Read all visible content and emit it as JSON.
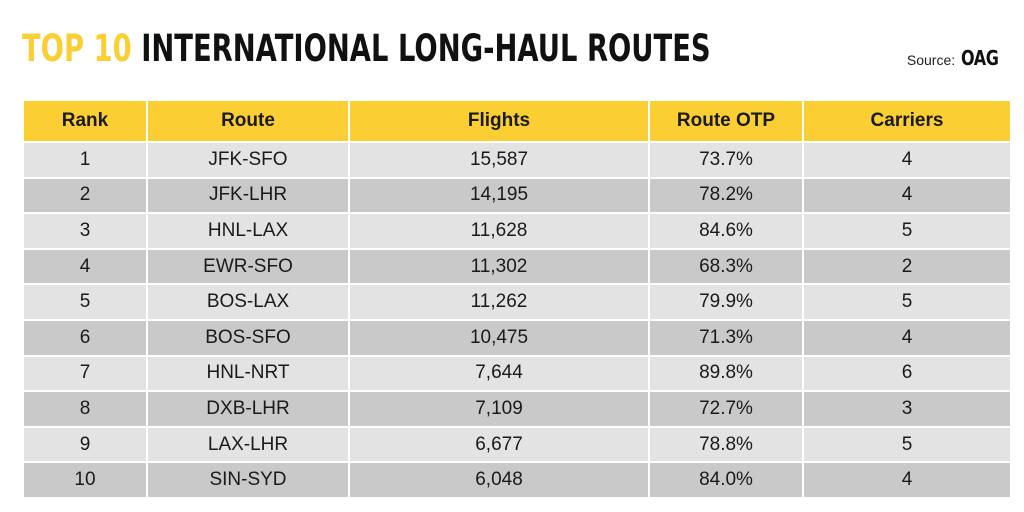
{
  "title": {
    "accent": "TOP 10",
    "main": "INTERNATIONAL LONG-HAUL ROUTES"
  },
  "source": {
    "label": "Source:",
    "brand": "OAG"
  },
  "colors": {
    "header_bg": "#fbcf33",
    "title_accent": "#fbcf33",
    "row_light": "#e3e3e3",
    "row_dark": "#c9c9c9"
  },
  "chart_data": {
    "type": "table",
    "title": "TOP 10 INTERNATIONAL LONG-HAUL ROUTES",
    "columns": [
      "Rank",
      "Route",
      "Flights",
      "Route OTP",
      "Carriers"
    ],
    "rows": [
      [
        "1",
        "JFK-SFO",
        "15,587",
        "73.7%",
        "4"
      ],
      [
        "2",
        "JFK-LHR",
        "14,195",
        "78.2%",
        "4"
      ],
      [
        "3",
        "HNL-LAX",
        "11,628",
        "84.6%",
        "5"
      ],
      [
        "4",
        "EWR-SFO",
        "11,302",
        "68.3%",
        "2"
      ],
      [
        "5",
        "BOS-LAX",
        "11,262",
        "79.9%",
        "5"
      ],
      [
        "6",
        "BOS-SFO",
        "10,475",
        "71.3%",
        "4"
      ],
      [
        "7",
        "HNL-NRT",
        "7,644",
        "89.8%",
        "6"
      ],
      [
        "8",
        "DXB-LHR",
        "7,109",
        "72.7%",
        "3"
      ],
      [
        "9",
        "LAX-LHR",
        "6,677",
        "78.8%",
        "5"
      ],
      [
        "10",
        "SIN-SYD",
        "6,048",
        "84.0%",
        "4"
      ]
    ]
  }
}
